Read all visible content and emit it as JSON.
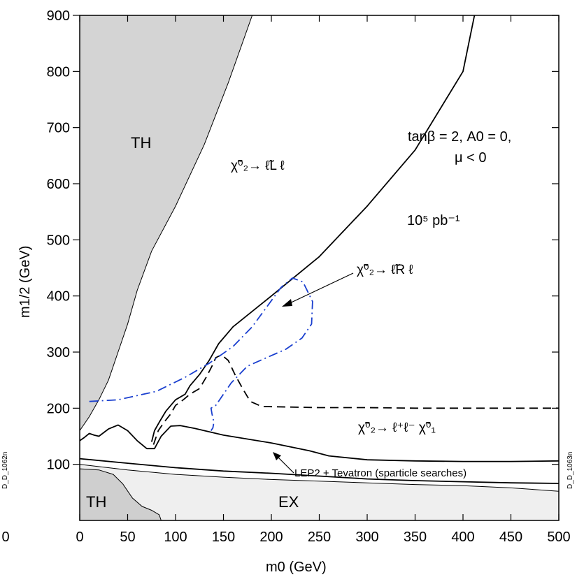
{
  "chart_data": {
    "type": "line",
    "xlabel": "m0 (GeV)",
    "ylabel": "m1/2 (GeV)",
    "xlim": [
      0,
      500
    ],
    "ylim": [
      0,
      900
    ],
    "x_ticks": [
      0,
      50,
      100,
      150,
      200,
      250,
      300,
      350,
      400,
      450,
      500
    ],
    "y_ticks": [
      100,
      200,
      300,
      400,
      500,
      600,
      700,
      800,
      900
    ],
    "grid": false,
    "legend": "none",
    "annotations": {
      "th_upper": "TH",
      "th_lower": "TH",
      "ex": "EX",
      "params_line1": "tanβ = 2, A0 = 0,",
      "params_line2": "μ < 0",
      "luminosity": "10⁵ pb⁻¹",
      "decay_L": "χ̃⁰₂→ ℓ̃L ℓ",
      "decay_R": "χ̃⁰₂→ ℓ̃R ℓ",
      "decay_3body": "χ̃⁰₂→ ℓ⁺ℓ⁻ χ̃⁰₁",
      "lep2": "LEP2 + Tevatron (sparticle searches)",
      "side_right": "D_D_1063n",
      "side_left": "D_D_1062n"
    },
    "regions": [
      {
        "name": "TH",
        "color": "#d4d4d4",
        "points": [
          [
            0,
            160
          ],
          [
            10,
            185
          ],
          [
            20,
            215
          ],
          [
            30,
            250
          ],
          [
            40,
            300
          ],
          [
            50,
            350
          ],
          [
            60,
            410
          ],
          [
            75,
            480
          ],
          [
            100,
            560
          ],
          [
            130,
            670
          ],
          [
            155,
            780
          ],
          [
            180,
            900
          ],
          [
            0,
            900
          ]
        ]
      },
      {
        "name": "EX",
        "color": "#efefef",
        "points": [
          [
            0,
            100
          ],
          [
            50,
            90
          ],
          [
            100,
            82
          ],
          [
            150,
            77
          ],
          [
            200,
            73
          ],
          [
            250,
            70
          ],
          [
            300,
            67
          ],
          [
            350,
            64
          ],
          [
            400,
            62
          ],
          [
            450,
            58
          ],
          [
            500,
            52
          ],
          [
            500,
            0
          ],
          [
            0,
            0
          ]
        ]
      },
      {
        "name": "TH-low",
        "color": "#cfcfcf",
        "points": [
          [
            0,
            92
          ],
          [
            20,
            90
          ],
          [
            35,
            82
          ],
          [
            45,
            65
          ],
          [
            55,
            40
          ],
          [
            65,
            25
          ],
          [
            75,
            18
          ],
          [
            83,
            10
          ],
          [
            85,
            0
          ],
          [
            0,
            0
          ]
        ]
      }
    ],
    "series": [
      {
        "color": "#000000",
        "style": "solid",
        "values": [
          [
            75,
            140
          ],
          [
            78,
            160
          ],
          [
            83,
            175
          ],
          [
            90,
            195
          ],
          [
            95,
            205
          ],
          [
            100,
            215
          ],
          [
            110,
            225
          ],
          [
            115,
            240
          ],
          [
            125,
            260
          ],
          [
            135,
            285
          ],
          [
            145,
            315
          ],
          [
            160,
            345
          ],
          [
            200,
            400
          ],
          [
            250,
            470
          ],
          [
            300,
            560
          ],
          [
            350,
            660
          ],
          [
            400,
            800
          ],
          [
            412,
            900
          ]
        ]
      },
      {
        "color": "#000000",
        "style": "solid",
        "values": [
          [
            0,
            142
          ],
          [
            5,
            148
          ],
          [
            10,
            155
          ],
          [
            15,
            152
          ],
          [
            20,
            150
          ],
          [
            30,
            163
          ],
          [
            40,
            170
          ],
          [
            50,
            160
          ],
          [
            60,
            142
          ],
          [
            70,
            128
          ],
          [
            78,
            128
          ],
          [
            85,
            150
          ],
          [
            95,
            168
          ],
          [
            105,
            169
          ],
          [
            120,
            164
          ],
          [
            150,
            152
          ],
          [
            200,
            138
          ],
          [
            240,
            124
          ],
          [
            260,
            115
          ],
          [
            300,
            108
          ],
          [
            350,
            106
          ],
          [
            400,
            105
          ],
          [
            450,
            105
          ],
          [
            500,
            106
          ]
        ]
      },
      {
        "color": "#000000",
        "style": "solid",
        "values": [
          [
            0,
            110
          ],
          [
            50,
            102
          ],
          [
            100,
            94
          ],
          [
            150,
            88
          ],
          [
            200,
            84
          ],
          [
            250,
            79
          ],
          [
            300,
            74
          ],
          [
            350,
            71
          ],
          [
            400,
            69
          ],
          [
            450,
            67
          ],
          [
            500,
            66
          ]
        ]
      },
      {
        "color": "#000000",
        "style": "dashed",
        "values": [
          [
            77,
            135
          ],
          [
            82,
            160
          ],
          [
            88,
            175
          ],
          [
            95,
            190
          ],
          [
            100,
            205
          ],
          [
            108,
            215
          ],
          [
            115,
            225
          ],
          [
            125,
            235
          ],
          [
            132,
            255
          ],
          [
            138,
            275
          ],
          [
            142,
            290
          ],
          [
            148,
            295
          ],
          [
            155,
            285
          ],
          [
            162,
            260
          ],
          [
            170,
            235
          ],
          [
            178,
            212
          ],
          [
            190,
            203
          ],
          [
            250,
            201
          ],
          [
            300,
            201
          ],
          [
            350,
            200
          ],
          [
            400,
            200
          ],
          [
            450,
            200
          ],
          [
            500,
            200
          ]
        ]
      },
      {
        "color": "#1a3fcf",
        "style": "dashdot",
        "values": [
          [
            10,
            212
          ],
          [
            40,
            215
          ],
          [
            80,
            230
          ],
          [
            110,
            255
          ],
          [
            135,
            280
          ],
          [
            160,
            310
          ],
          [
            180,
            345
          ],
          [
            195,
            380
          ],
          [
            210,
            415
          ],
          [
            222,
            432
          ],
          [
            233,
            425
          ],
          [
            243,
            390
          ],
          [
            242,
            350
          ],
          [
            232,
            325
          ],
          [
            215,
            305
          ],
          [
            195,
            290
          ],
          [
            175,
            275
          ],
          [
            158,
            245
          ],
          [
            148,
            220
          ],
          [
            142,
            205
          ],
          [
            137,
            200
          ],
          [
            138,
            190
          ],
          [
            140,
            175
          ],
          [
            139,
            165
          ],
          [
            137,
            160
          ]
        ]
      }
    ]
  }
}
